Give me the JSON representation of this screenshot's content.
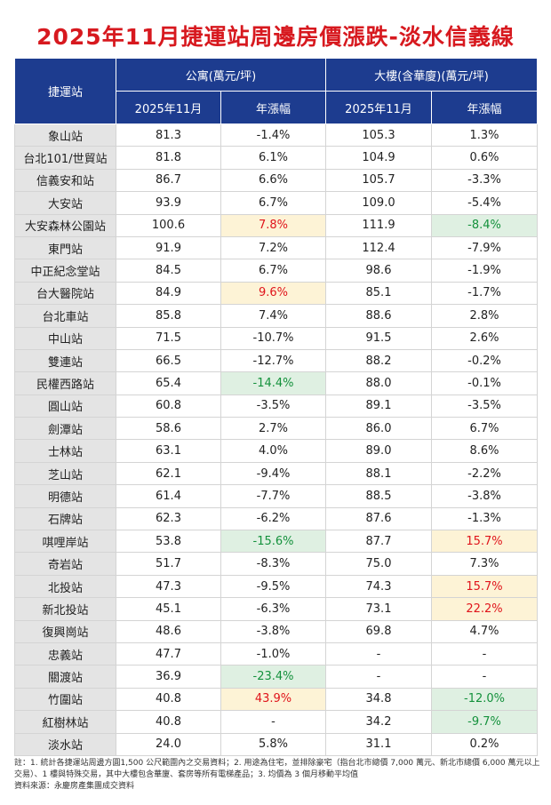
{
  "title": "2025年11月捷運站周邊房價漲跌-淡水信義線",
  "table": {
    "header": {
      "station": "捷運站",
      "groups": [
        "公寓(萬元/坪)",
        "大樓(含華廈)(萬元/坪)"
      ],
      "sub": [
        "2025年11月",
        "年漲幅",
        "2025年11月",
        "年漲幅"
      ]
    },
    "rows": [
      [
        "象山站",
        "81.3",
        "-1.4%",
        "105.3",
        "1.3%"
      ],
      [
        "台北101/世貿站",
        "81.8",
        "6.1%",
        "104.9",
        "0.6%"
      ],
      [
        "信義安和站",
        "86.7",
        "6.6%",
        "105.7",
        "-3.3%"
      ],
      [
        "大安站",
        "93.9",
        "6.7%",
        "109.0",
        "-5.4%"
      ],
      [
        "大安森林公園站",
        "100.6",
        "7.8%",
        "111.9",
        "-8.4%"
      ],
      [
        "東門站",
        "91.9",
        "7.2%",
        "112.4",
        "-7.9%"
      ],
      [
        "中正紀念堂站",
        "84.5",
        "6.7%",
        "98.6",
        "-1.9%"
      ],
      [
        "台大醫院站",
        "84.9",
        "9.6%",
        "85.1",
        "-1.7%"
      ],
      [
        "台北車站",
        "85.8",
        "7.4%",
        "88.6",
        "2.8%"
      ],
      [
        "中山站",
        "71.5",
        "-10.7%",
        "91.5",
        "2.6%"
      ],
      [
        "雙連站",
        "66.5",
        "-12.7%",
        "88.2",
        "-0.2%"
      ],
      [
        "民權西路站",
        "65.4",
        "-14.4%",
        "88.0",
        "-0.1%"
      ],
      [
        "圓山站",
        "60.8",
        "-3.5%",
        "89.1",
        "-3.5%"
      ],
      [
        "劍潭站",
        "58.6",
        "2.7%",
        "86.0",
        "6.7%"
      ],
      [
        "士林站",
        "63.1",
        "4.0%",
        "89.0",
        "8.6%"
      ],
      [
        "芝山站",
        "62.1",
        "-9.4%",
        "88.1",
        "-2.2%"
      ],
      [
        "明德站",
        "61.4",
        "-7.7%",
        "88.5",
        "-3.8%"
      ],
      [
        "石牌站",
        "62.3",
        "-6.2%",
        "87.6",
        "-1.3%"
      ],
      [
        "唭哩岸站",
        "53.8",
        "-15.6%",
        "87.7",
        "15.7%"
      ],
      [
        "奇岩站",
        "51.7",
        "-8.3%",
        "75.0",
        "7.3%"
      ],
      [
        "北投站",
        "47.3",
        "-9.5%",
        "74.3",
        "15.7%"
      ],
      [
        "新北投站",
        "45.1",
        "-6.3%",
        "73.1",
        "22.2%"
      ],
      [
        "復興崗站",
        "48.6",
        "-3.8%",
        "69.8",
        "4.7%"
      ],
      [
        "忠義站",
        "47.7",
        "-1.0%",
        "-",
        "-"
      ],
      [
        "關渡站",
        "36.9",
        "-23.4%",
        "-",
        "-"
      ],
      [
        "竹圍站",
        "40.8",
        "43.9%",
        "34.8",
        "-12.0%"
      ],
      [
        "紅樹林站",
        "40.8",
        "-",
        "34.2",
        "-9.7%"
      ],
      [
        "淡水站",
        "24.0",
        "5.8%",
        "31.1",
        "0.2%"
      ]
    ]
  },
  "notes": [
    "註：1. 統計各捷運站周邊方圓1,500 公尺範圍內之交易資料；2. 用途為住宅，並排除豪宅（指台北市總價 7,000 萬元、新北市總價 6,000 萬元以上交易）、1 樓與特殊交易，其中大樓包含華廈、套房等所有電梯產品；3. 均價為 3 個月移動平均值",
    "資料來源：永慶房產集團成交資料"
  ]
}
